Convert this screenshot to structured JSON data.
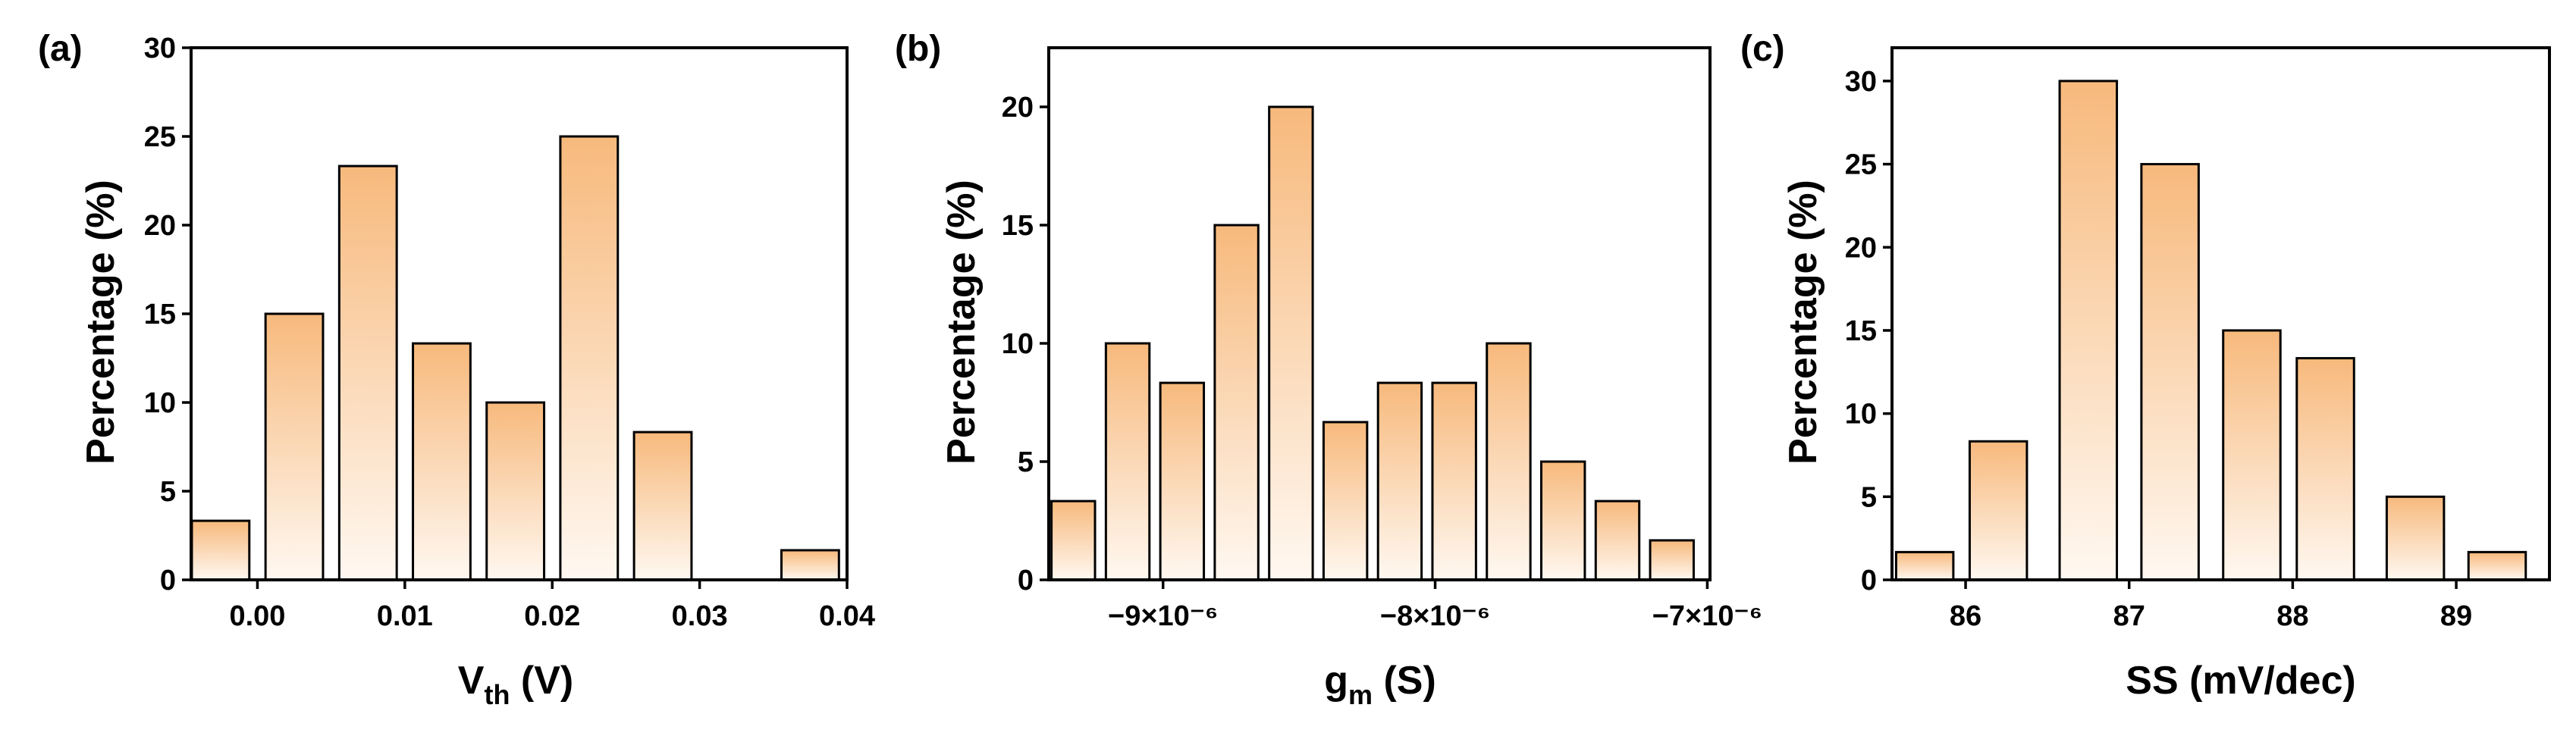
{
  "colors": {
    "bar_top": "#f7b97c",
    "bar_bottom": "#fff8f1",
    "stroke": "#000000"
  },
  "chart_data": [
    {
      "type": "bar",
      "panel_label": "(a)",
      "xlabel_main": "V",
      "xlabel_sub": "th",
      "xlabel_suffix": " (V)",
      "ylabel": "Percentage (%)",
      "xlim": [
        -0.0045,
        0.04
      ],
      "ylim": [
        0,
        30
      ],
      "bar_width": 0.0039,
      "x": [
        -0.0025,
        0.0025,
        0.0075,
        0.0125,
        0.0175,
        0.0225,
        0.0275,
        0.0375
      ],
      "values": [
        3.33,
        15.0,
        23.33,
        13.33,
        10.0,
        25.0,
        8.33,
        1.67
      ],
      "xticks": [
        {
          "v": 0.0,
          "label": "0.00"
        },
        {
          "v": 0.01,
          "label": "0.01"
        },
        {
          "v": 0.02,
          "label": "0.02"
        },
        {
          "v": 0.03,
          "label": "0.03"
        },
        {
          "v": 0.04,
          "label": "0.04"
        }
      ],
      "yticks": [
        {
          "v": 0,
          "label": "0"
        },
        {
          "v": 5,
          "label": "5"
        },
        {
          "v": 10,
          "label": "10"
        },
        {
          "v": 15,
          "label": "15"
        },
        {
          "v": 20,
          "label": "20"
        },
        {
          "v": 25,
          "label": "25"
        },
        {
          "v": 30,
          "label": "30"
        }
      ]
    },
    {
      "type": "bar",
      "panel_label": "(b)",
      "xlabel_main": "g",
      "xlabel_sub": "m",
      "xlabel_suffix": " (S)",
      "ylabel": "Percentage (%)",
      "xlim": [
        -9.42e-06,
        -6.99e-06
      ],
      "ylim": [
        0,
        22.5
      ],
      "bar_width": 1.6e-07,
      "x": [
        -9.33e-06,
        -9.13e-06,
        -8.93e-06,
        -8.73e-06,
        -8.53e-06,
        -8.33e-06,
        -8.13e-06,
        -7.93e-06,
        -7.73e-06,
        -7.53e-06,
        -7.33e-06,
        -7.13e-06
      ],
      "values": [
        3.33,
        10.0,
        8.33,
        15.0,
        20.0,
        6.67,
        8.33,
        8.33,
        10.0,
        5.0,
        3.33,
        1.67
      ],
      "xticks": [
        {
          "v": -9e-06,
          "label": "−9×10⁻⁶"
        },
        {
          "v": -8e-06,
          "label": "−8×10⁻⁶"
        },
        {
          "v": -7e-06,
          "label": "−7×10⁻⁶"
        }
      ],
      "yticks": [
        {
          "v": 0,
          "label": "0"
        },
        {
          "v": 5,
          "label": "5"
        },
        {
          "v": 10,
          "label": "10"
        },
        {
          "v": 15,
          "label": "15"
        },
        {
          "v": 20,
          "label": "20"
        }
      ]
    },
    {
      "type": "bar",
      "panel_label": "(c)",
      "xlabel_main": "SS (mV/dec)",
      "xlabel_sub": "",
      "xlabel_suffix": "",
      "ylabel": "Percentage (%)",
      "xlim": [
        85.55,
        89.57
      ],
      "ylim": [
        0,
        32
      ],
      "bar_width": 0.35,
      "x": [
        85.75,
        86.2,
        86.75,
        87.25,
        87.75,
        88.2,
        88.75,
        89.25
      ],
      "values": [
        1.67,
        8.33,
        30.0,
        25.0,
        15.0,
        13.33,
        5.0,
        1.67
      ],
      "xticks": [
        {
          "v": 86,
          "label": "86"
        },
        {
          "v": 87,
          "label": "87"
        },
        {
          "v": 88,
          "label": "88"
        },
        {
          "v": 89,
          "label": "89"
        }
      ],
      "yticks": [
        {
          "v": 0,
          "label": "0"
        },
        {
          "v": 5,
          "label": "5"
        },
        {
          "v": 10,
          "label": "10"
        },
        {
          "v": 15,
          "label": "15"
        },
        {
          "v": 20,
          "label": "20"
        },
        {
          "v": 25,
          "label": "25"
        },
        {
          "v": 30,
          "label": "30"
        }
      ]
    }
  ]
}
